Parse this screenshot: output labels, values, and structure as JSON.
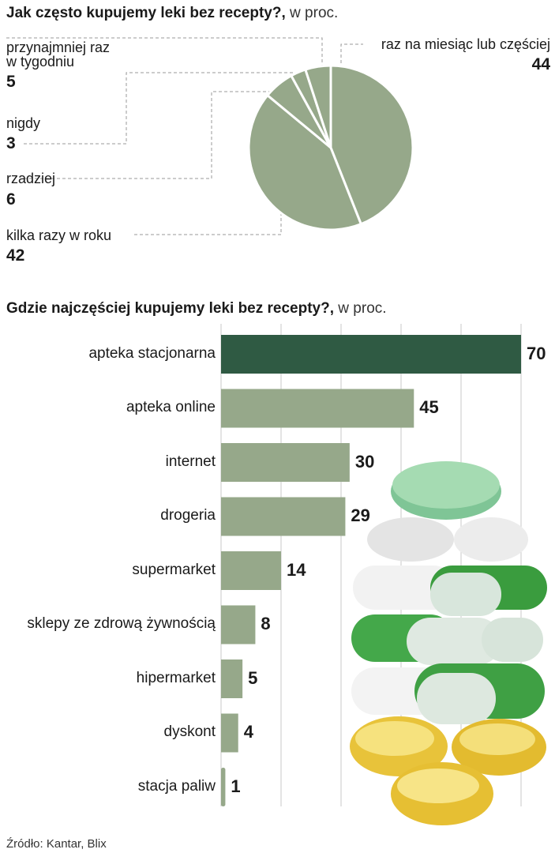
{
  "chart_data": [
    {
      "type": "pie",
      "title": "Jak często kupujemy leki bez recepty?,",
      "unit": "w proc.",
      "slices": [
        {
          "label": "raz na miesiąc lub częściej",
          "value": 44
        },
        {
          "label": "kilka razy w roku",
          "value": 42
        },
        {
          "label": "rzadziej",
          "value": 6
        },
        {
          "label": "nigdy",
          "value": 3
        },
        {
          "label": "przynajmniej raz w tygodniu",
          "value": 5
        }
      ],
      "labels_display": {
        "weekly_line1": "przynajmniej raz",
        "weekly_line2": "w tygodniu"
      },
      "colors": {
        "fill": "#96a88a",
        "stroke": "#ffffff",
        "leader": "#9a9a9a"
      }
    },
    {
      "type": "bar",
      "orientation": "horizontal",
      "title": "Gdzie najczęściej kupujemy leki bez recepty?,",
      "unit": "w proc.",
      "categories": [
        "apteka stacjonarna",
        "apteka online",
        "internet",
        "drogeria",
        "supermarket",
        "sklepy ze zdrową żywnością",
        "hipermarket",
        "dyskont",
        "stacja paliw"
      ],
      "values": [
        70,
        45,
        30,
        29,
        14,
        8,
        5,
        4,
        1
      ],
      "xlim": [
        0,
        70
      ],
      "grid": true,
      "colors": {
        "highlight": "#2f5a43",
        "bar": "#96a88a",
        "grid": "#c9c9c9"
      }
    }
  ],
  "source": "Źródło: Kantar, Blix"
}
